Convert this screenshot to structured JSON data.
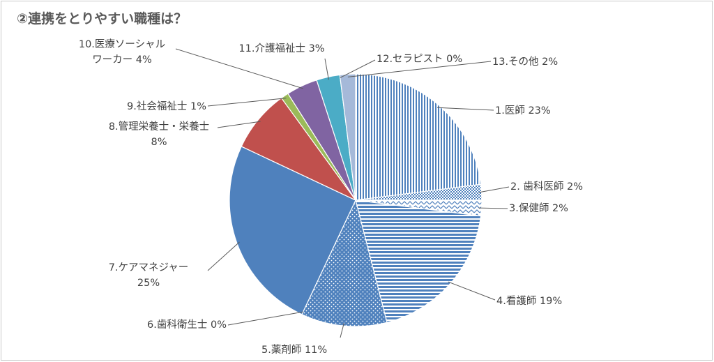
{
  "chart_data": {
    "type": "pie",
    "title": "②連携をとりやすい職種は？",
    "start": "12 o'clock",
    "direction": "clockwise",
    "slices": [
      {
        "label": "1.医師  23%",
        "value": 23,
        "color": "#4f81bd",
        "pattern": "vertical-stripes"
      },
      {
        "label": "2. 歯科医師  2%",
        "value": 2,
        "color": "#4f81bd",
        "pattern": "checker"
      },
      {
        "label": "3.保健師  2%",
        "value": 2,
        "color": "#4f81bd",
        "pattern": "zigzag"
      },
      {
        "label": "4.看護師  19%",
        "value": 19,
        "color": "#4f81bd",
        "pattern": "horizontal-stripes"
      },
      {
        "label": "5.薬剤師  11%",
        "value": 11,
        "color": "#4f81bd",
        "pattern": "dots"
      },
      {
        "label": "6.歯科衛生士  0%",
        "value": 0,
        "color": "#4f81bd",
        "pattern": "solid"
      },
      {
        "label": "7.ケアマネジャー\n25%",
        "value": 25,
        "color": "#4f81bd",
        "pattern": "solid"
      },
      {
        "label": "8.管理栄養士・栄養士\n8%",
        "value": 8,
        "color": "#c0504d",
        "pattern": "solid"
      },
      {
        "label": "9.社会福祉士  1%",
        "value": 1,
        "color": "#9bbb59",
        "pattern": "solid"
      },
      {
        "label": "10.医療ソーシャル\nワーカー  4%",
        "value": 4,
        "color": "#8064a2",
        "pattern": "solid"
      },
      {
        "label": "11.介護福祉士  3%",
        "value": 3,
        "color": "#4bacc6",
        "pattern": "solid"
      },
      {
        "label": "12.セラピスト  0%",
        "value": 0,
        "color": "#4f81bd",
        "pattern": "solid"
      },
      {
        "label": "13.その他  2%",
        "value": 2,
        "color": "#a5b9d9",
        "pattern": "solid"
      }
    ],
    "legend": "none"
  }
}
